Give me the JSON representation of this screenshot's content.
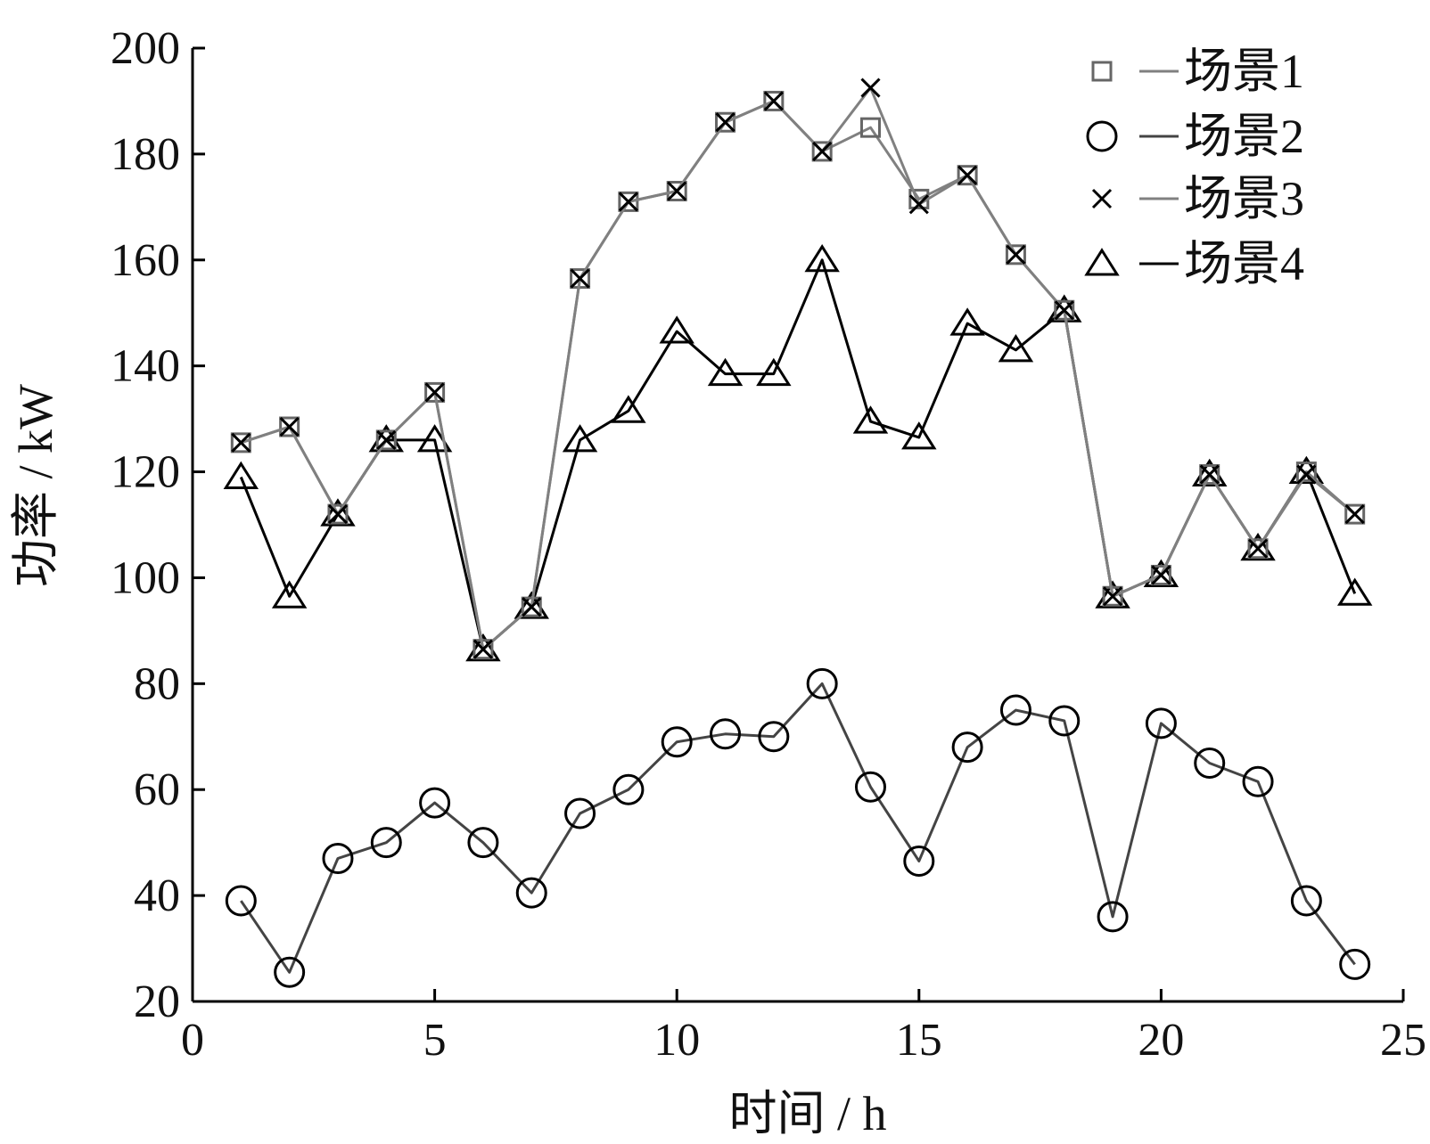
{
  "chart_data": {
    "type": "line",
    "title": "",
    "xlabel": "时间 / h",
    "ylabel": "功率 / kW",
    "xlim": [
      0,
      25
    ],
    "ylim": [
      20,
      200
    ],
    "xticks": [
      0,
      5,
      10,
      15,
      20,
      25
    ],
    "yticks": [
      20,
      40,
      60,
      80,
      100,
      120,
      140,
      160,
      180,
      200
    ],
    "grid": false,
    "legend_position": "top-right",
    "x": [
      1,
      2,
      3,
      4,
      5,
      6,
      7,
      8,
      9,
      10,
      11,
      12,
      13,
      14,
      15,
      16,
      17,
      18,
      19,
      20,
      21,
      22,
      23,
      24
    ],
    "series": [
      {
        "name": "场景1",
        "marker": "square",
        "color": "#808080",
        "values": [
          125.5,
          128.5,
          112,
          126,
          135,
          86.5,
          94.5,
          156.5,
          171,
          173,
          186,
          190,
          180.5,
          185,
          171.5,
          176,
          161,
          150.5,
          96.5,
          100.5,
          119.5,
          105.5,
          120,
          112
        ]
      },
      {
        "name": "场景2",
        "marker": "circle",
        "color": "#444444",
        "values": [
          39,
          25.5,
          47,
          50,
          57.5,
          50,
          40.5,
          55.5,
          60,
          69,
          70.5,
          70,
          80,
          60.5,
          46.5,
          68,
          75,
          73,
          36,
          72.5,
          65,
          61.5,
          39,
          27
        ]
      },
      {
        "name": "场景3",
        "marker": "x",
        "color": "#808080",
        "values": [
          125.5,
          128.5,
          112,
          126,
          135,
          86.5,
          94.5,
          156.5,
          171,
          173,
          186,
          190,
          180.5,
          192.5,
          170.5,
          176,
          161,
          150.5,
          96.5,
          100.5,
          119.5,
          105.5,
          119.5,
          112
        ]
      },
      {
        "name": "场景4",
        "marker": "triangle",
        "color": "#000000",
        "values": [
          119,
          96.5,
          112,
          126,
          126,
          86.5,
          94.5,
          126,
          131.5,
          146.5,
          138.5,
          138.5,
          160,
          129.5,
          126.5,
          148,
          143,
          150.5,
          96.5,
          100.5,
          119.5,
          105.5,
          120,
          97
        ]
      }
    ]
  }
}
